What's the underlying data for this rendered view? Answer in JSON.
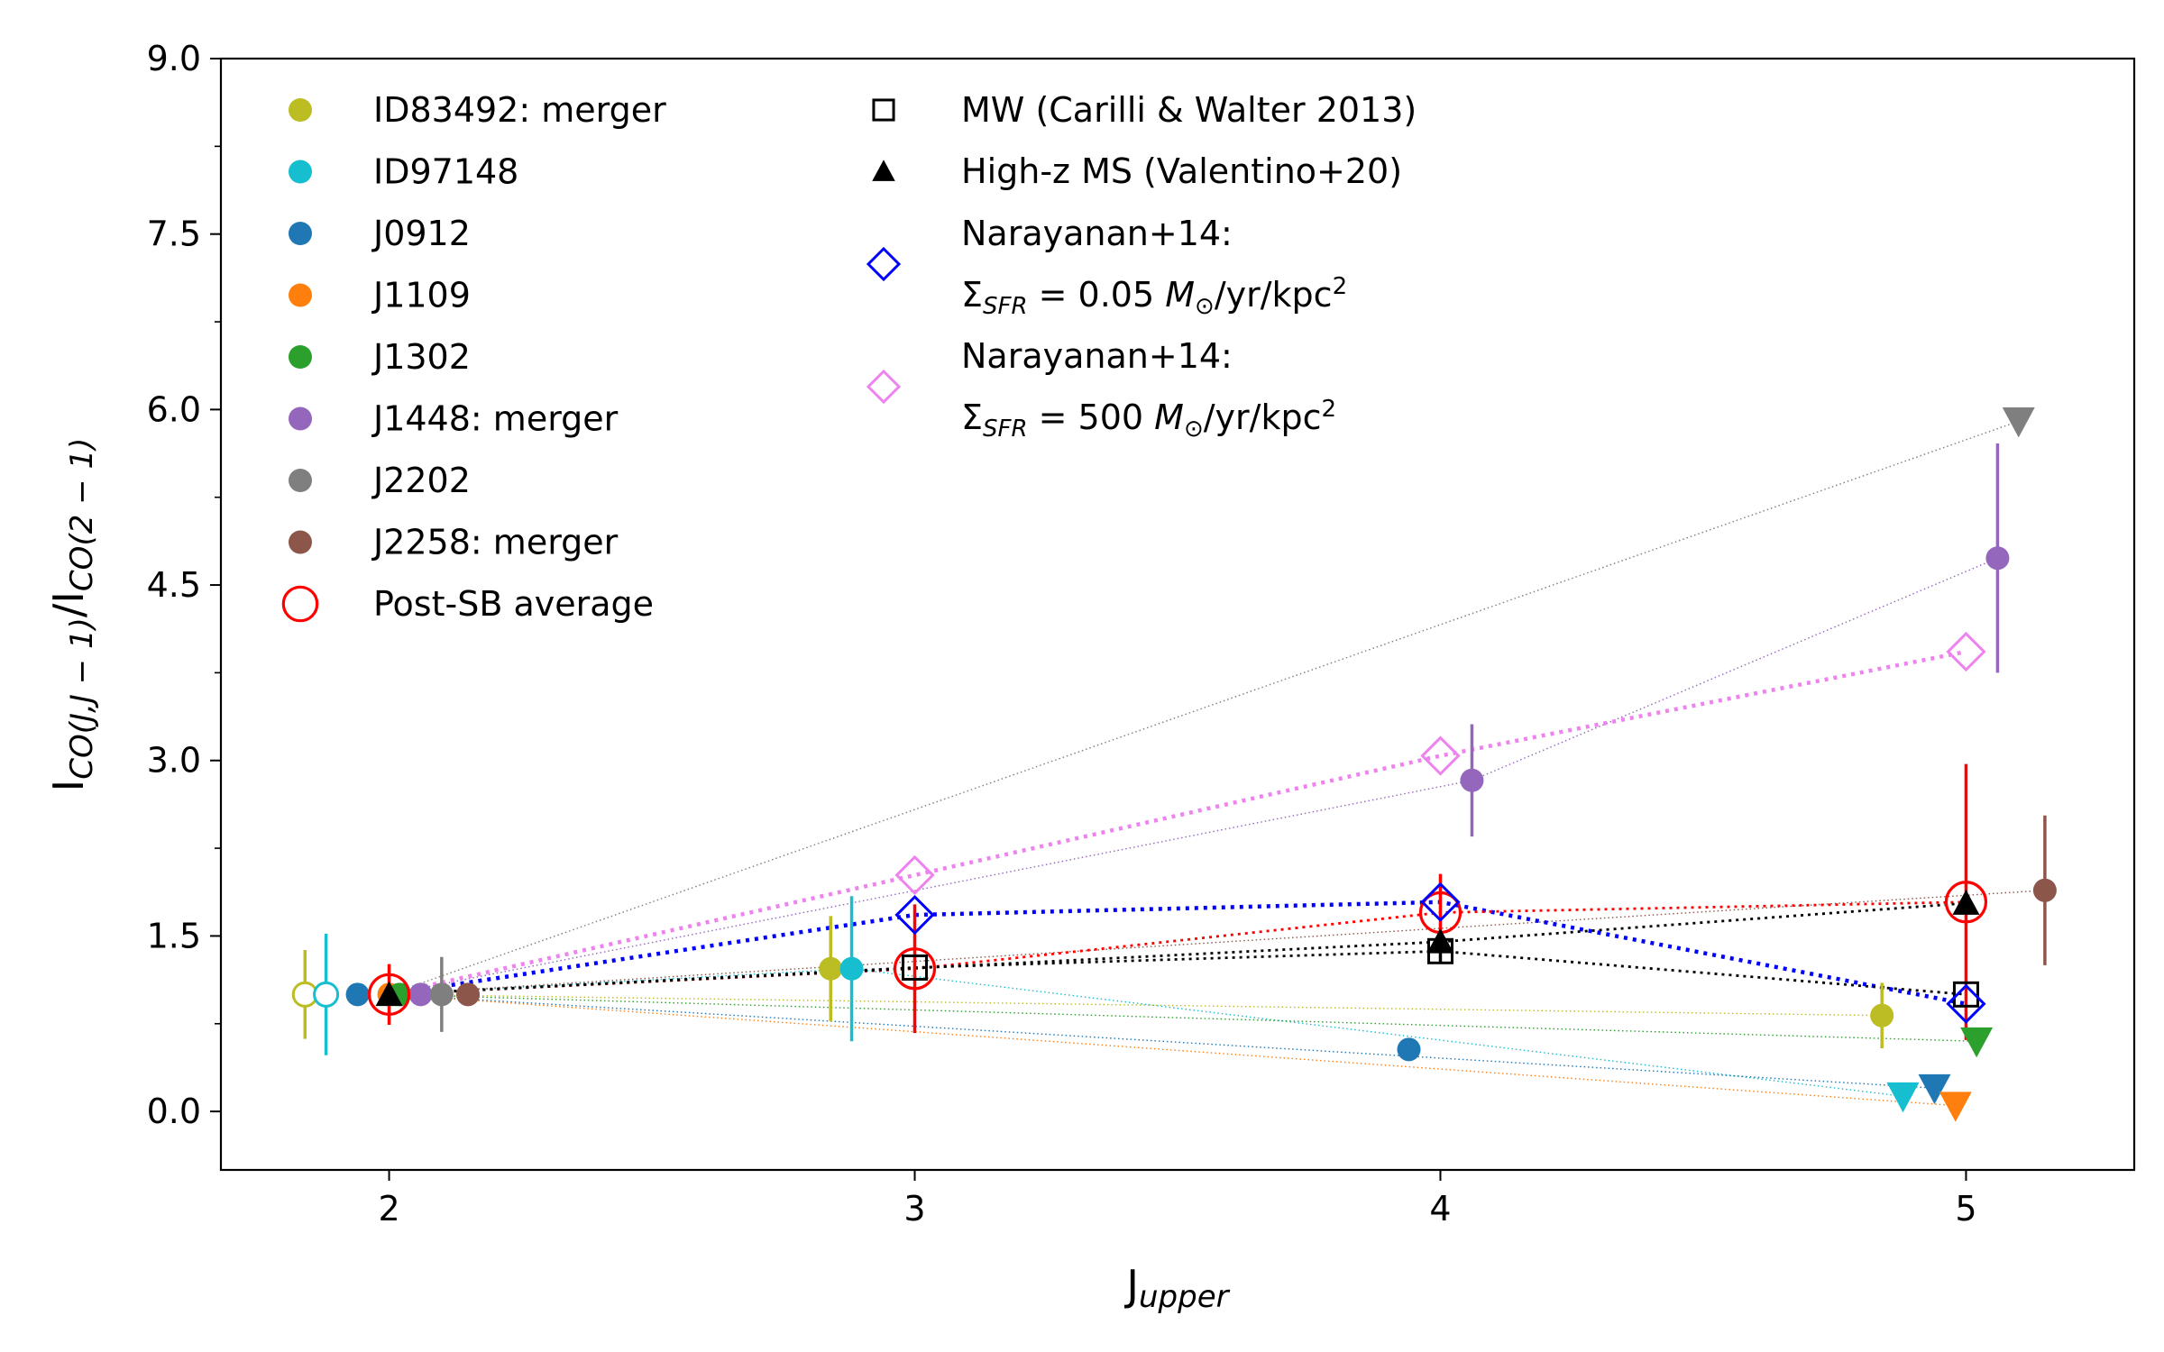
{
  "chart_data": {
    "type": "scatter",
    "xlabel": "J",
    "xlabel_sub": "upper",
    "ylabel_main": "I",
    "ylabel_sub_num": "CO(J,J − 1)",
    "ylabel_mid": "/I",
    "ylabel_sub_den": "CO(2 − 1)",
    "xlim": [
      1.68,
      5.32
    ],
    "ylim": [
      -0.5,
      9.0
    ],
    "xticks": [
      2,
      3,
      4,
      5
    ],
    "yticks": [
      0.0,
      1.5,
      3.0,
      4.5,
      6.0,
      7.5,
      9.0
    ],
    "xtick_labels": [
      "2",
      "3",
      "4",
      "5"
    ],
    "ytick_labels": [
      "0.0",
      "1.5",
      "3.0",
      "4.5",
      "6.0",
      "7.5",
      "9.0"
    ],
    "grid": false,
    "legend_position": "top-left",
    "series": [
      {
        "name": "ID83492: merger",
        "color": "#bcbd22",
        "marker": "circle",
        "points": [
          {
            "x": 1.84,
            "y": 1.0,
            "err": 0.38,
            "open": true
          },
          {
            "x": 2.84,
            "y": 1.22,
            "err": 0.45
          },
          {
            "x": 4.84,
            "y": 0.82,
            "err": 0.28
          }
        ],
        "link": [
          [
            2.0,
            1.0
          ],
          [
            4.84,
            0.82
          ]
        ]
      },
      {
        "name": "ID97148",
        "color": "#17becf",
        "marker": "circle",
        "points": [
          {
            "x": 1.88,
            "y": 1.0,
            "err": 0.52,
            "open": true
          },
          {
            "x": 2.88,
            "y": 1.22,
            "err": 0.62
          },
          {
            "x": 4.88,
            "y": 0.13,
            "upper_limit": true
          }
        ],
        "link": [
          [
            2.0,
            1.0
          ],
          [
            2.88,
            1.22
          ],
          [
            4.88,
            0.13
          ]
        ]
      },
      {
        "name": "J0912",
        "color": "#1f77b4",
        "marker": "circle",
        "points": [
          {
            "x": 1.94,
            "y": 1.0
          },
          {
            "x": 3.94,
            "y": 0.53
          },
          {
            "x": 4.94,
            "y": 0.2,
            "upper_limit": true
          }
        ],
        "link": [
          [
            2.0,
            1.0
          ],
          [
            4.94,
            0.2
          ]
        ]
      },
      {
        "name": "J1109",
        "color": "#ff7f0e",
        "marker": "circle",
        "points": [
          {
            "x": 2.0,
            "y": 1.0
          },
          {
            "x": 4.98,
            "y": 0.05,
            "upper_limit": true
          }
        ],
        "link": [
          [
            2.0,
            1.0
          ],
          [
            4.98,
            0.05
          ]
        ]
      },
      {
        "name": "J1302",
        "color": "#2ca02c",
        "marker": "circle",
        "points": [
          {
            "x": 2.02,
            "y": 1.0
          },
          {
            "x": 5.02,
            "y": 0.6,
            "upper_limit": true
          }
        ],
        "link": [
          [
            2.0,
            1.0
          ],
          [
            5.02,
            0.6
          ]
        ]
      },
      {
        "name": "J1448: merger",
        "color": "#9467bd",
        "marker": "circle",
        "points": [
          {
            "x": 2.06,
            "y": 1.0
          },
          {
            "x": 4.06,
            "y": 2.83,
            "err": 0.48
          },
          {
            "x": 5.06,
            "y": 4.73,
            "err": 0.98
          }
        ],
        "link": [
          [
            2.0,
            1.0
          ],
          [
            4.06,
            2.83
          ],
          [
            5.06,
            4.73
          ]
        ]
      },
      {
        "name": "J2202",
        "color": "#7f7f7f",
        "marker": "circle",
        "points": [
          {
            "x": 2.1,
            "y": 1.0,
            "err": 0.32
          },
          {
            "x": 5.1,
            "y": 5.9,
            "upper_limit": true
          }
        ],
        "link": [
          [
            2.0,
            1.0
          ],
          [
            5.1,
            5.9
          ]
        ]
      },
      {
        "name": "J2258: merger",
        "color": "#8c564b",
        "marker": "circle",
        "points": [
          {
            "x": 2.15,
            "y": 1.0
          },
          {
            "x": 5.15,
            "y": 1.89,
            "err": 0.64
          }
        ],
        "link": [
          [
            2.0,
            1.0
          ],
          [
            5.15,
            1.89
          ]
        ]
      },
      {
        "name": "Post-SB average",
        "color": "#ff0000",
        "marker": "open-circle",
        "points": [
          {
            "x": 2.0,
            "y": 1.0,
            "err": 0.26
          },
          {
            "x": 3.0,
            "y": 1.22,
            "err": 0.55
          },
          {
            "x": 4.0,
            "y": 1.7,
            "err": 0.33
          },
          {
            "x": 5.0,
            "y": 1.79,
            "err": 1.18
          }
        ]
      },
      {
        "name": "MW (Carilli & Walter 2013)",
        "color": "#000000",
        "marker": "open-square",
        "points": [
          {
            "x": 3.0,
            "y": 1.23
          },
          {
            "x": 4.0,
            "y": 1.37,
            "err": 0.09
          },
          {
            "x": 5.0,
            "y": 1.0
          }
        ]
      },
      {
        "name": "High-z MS (Valentino+20)",
        "color": "#000000",
        "marker": "triangle",
        "points": [
          {
            "x": 2.0,
            "y": 1.0
          },
          {
            "x": 4.0,
            "y": 1.45
          },
          {
            "x": 5.0,
            "y": 1.78
          }
        ]
      },
      {
        "name": "Narayanan+14:",
        "name_line2": "Σ_SFR = 0.05 M⊙/yr/kpc²",
        "color": "#0000ff",
        "marker": "open-diamond",
        "points": [
          {
            "x": 3.0,
            "y": 1.68
          },
          {
            "x": 4.0,
            "y": 1.79
          },
          {
            "x": 5.0,
            "y": 0.92
          }
        ]
      },
      {
        "name": "Narayanan+14:",
        "name_line2": "Σ_SFR = 500 M⊙/yr/kpc²",
        "color": "#ee82ee",
        "marker": "open-diamond",
        "points": [
          {
            "x": 3.0,
            "y": 2.02
          },
          {
            "x": 4.0,
            "y": 3.04
          },
          {
            "x": 5.0,
            "y": 3.93
          }
        ]
      }
    ],
    "model_lines": [
      {
        "color": "#0000ff",
        "style": "dotted-thick",
        "points": [
          [
            2.0,
            1.0
          ],
          [
            3.0,
            1.68
          ],
          [
            4.0,
            1.79
          ],
          [
            5.0,
            0.92
          ]
        ]
      },
      {
        "color": "#ee82ee",
        "style": "dotted-thick",
        "points": [
          [
            2.0,
            1.0
          ],
          [
            3.0,
            2.02
          ],
          [
            4.0,
            3.04
          ],
          [
            5.0,
            3.93
          ]
        ]
      },
      {
        "color": "#ff0000",
        "style": "dotted",
        "points": [
          [
            2.0,
            1.0
          ],
          [
            3.0,
            1.22
          ],
          [
            4.0,
            1.7
          ],
          [
            5.0,
            1.79
          ]
        ]
      },
      {
        "color": "#000000",
        "style": "dotted",
        "points": [
          [
            2.0,
            1.0
          ],
          [
            3.0,
            1.23
          ],
          [
            4.0,
            1.37
          ],
          [
            5.0,
            1.0
          ]
        ]
      },
      {
        "color": "#000000",
        "style": "dotted",
        "points": [
          [
            2.0,
            1.0
          ],
          [
            4.0,
            1.45
          ],
          [
            5.0,
            1.78
          ]
        ]
      }
    ],
    "legend_left": [
      {
        "label": "ID83492: merger",
        "color": "#bcbd22",
        "marker": "circle"
      },
      {
        "label": "ID97148",
        "color": "#17becf",
        "marker": "circle"
      },
      {
        "label": "J0912",
        "color": "#1f77b4",
        "marker": "circle"
      },
      {
        "label": "J1109",
        "color": "#ff7f0e",
        "marker": "circle"
      },
      {
        "label": "J1302",
        "color": "#2ca02c",
        "marker": "circle"
      },
      {
        "label": "J1448: merger",
        "color": "#9467bd",
        "marker": "circle"
      },
      {
        "label": "J2202",
        "color": "#7f7f7f",
        "marker": "circle"
      },
      {
        "label": "J2258: merger",
        "color": "#8c564b",
        "marker": "circle"
      },
      {
        "label": "Post-SB average",
        "color": "#ff0000",
        "marker": "open-circle"
      }
    ],
    "legend_right": [
      {
        "label": "MW (Carilli & Walter 2013)",
        "color": "#000000",
        "marker": "open-square"
      },
      {
        "label": "High-z MS (Valentino+20)",
        "color": "#000000",
        "marker": "triangle"
      },
      {
        "label": "Narayanan+14:",
        "line2_value": "0.05",
        "color": "#0000ff",
        "marker": "open-diamond"
      },
      {
        "label": "Narayanan+14:",
        "line2_value": "500",
        "color": "#ee82ee",
        "marker": "open-diamond"
      }
    ],
    "legend_sfr": {
      "symbol": "Σ",
      "sub": "SFR",
      "equals": " = ",
      "msun": "M",
      "sun_sub": "⊙",
      "unit": "/yr/kpc",
      "sup": "2"
    }
  }
}
